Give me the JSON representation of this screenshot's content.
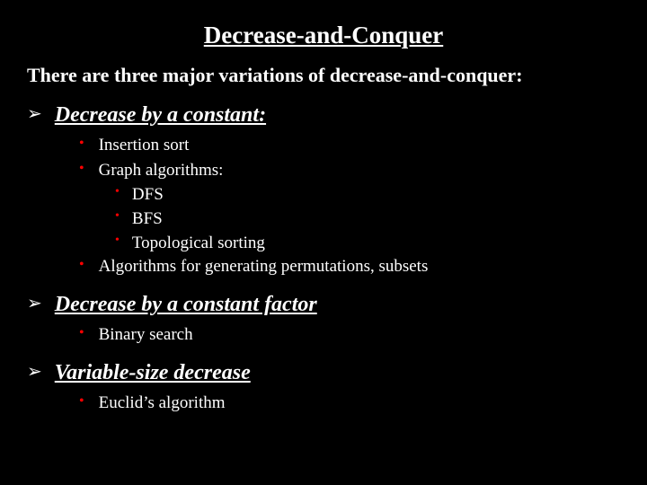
{
  "title_text": "Decrease-and-Conquer",
  "title_fontsize": "27px",
  "title_color": "#ffffff",
  "intro_text": "There are three major variations of decrease-and-conquer:",
  "intro_fontsize": "22px",
  "intro_color": "#ffffff",
  "l1_bullet_glyph": "➢",
  "l1_bullet_color": "#ffffff",
  "l1_bullet_fontsize": "20px",
  "l1_text_fontsize": "24px",
  "l1_text_color": "#ffffff",
  "l2_bullet_glyph": "•",
  "l2_bullet_color": "#ff0000",
  "l2_bullet_fontsize": "16px",
  "l2_text_fontsize": "19px",
  "l2_text_color": "#ffffff",
  "l3_bullet_glyph": "•",
  "l3_bullet_color": "#ff0000",
  "l3_bullet_fontsize": "14px",
  "l3_text_fontsize": "19px",
  "l3_text_color": "#ffffff",
  "section1": {
    "heading": "Decrease by a constant:",
    "items": {
      "i0": "Insertion sort",
      "i1": "Graph algorithms:",
      "i1_sub": {
        "s0": "DFS",
        "s1": "BFS",
        "s2": "Topological sorting"
      },
      "i2": "Algorithms for generating permutations, subsets"
    }
  },
  "section2": {
    "heading": "Decrease by a constant factor",
    "items": {
      "i0": "Binary search"
    }
  },
  "section3": {
    "heading": "Variable-size decrease",
    "items": {
      "i0": "Euclid’s algorithm"
    }
  },
  "background_color": "#000000"
}
